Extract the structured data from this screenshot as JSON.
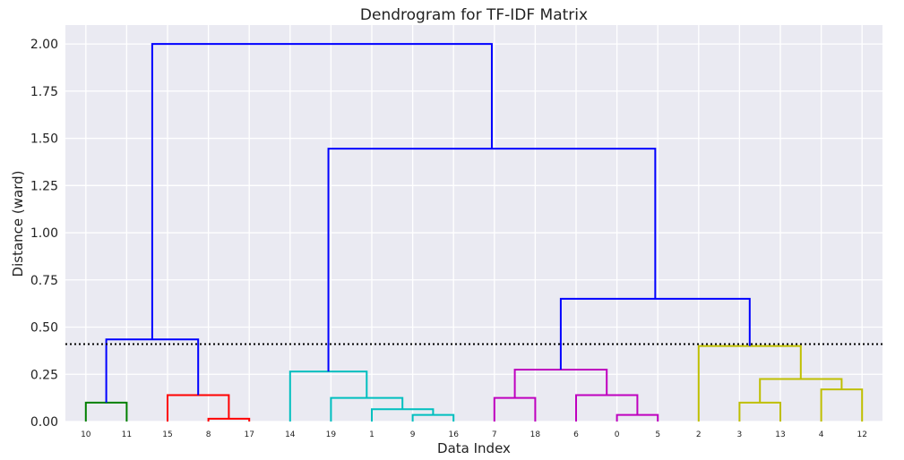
{
  "chart_data": {
    "type": "dendrogram",
    "title": "Dendrogram for TF-IDF Matrix",
    "xlabel": "Data Index",
    "ylabel": "Distance (ward)",
    "ylim": [
      0,
      2.1
    ],
    "yticks": [
      "0.00",
      "0.25",
      "0.50",
      "0.75",
      "1.00",
      "1.25",
      "1.50",
      "1.75",
      "2.00"
    ],
    "leaves": [
      "10",
      "11",
      "15",
      "8",
      "17",
      "14",
      "19",
      "1",
      "9",
      "16",
      "7",
      "18",
      "6",
      "0",
      "5",
      "2",
      "3",
      "13",
      "4",
      "12"
    ],
    "threshold": 0.41,
    "grid": true,
    "background": "#eaeaf2",
    "merges": [
      {
        "a": "10",
        "b": "11",
        "height": 0.1,
        "color": "#008000"
      },
      {
        "a": "8",
        "b": "17",
        "height": 0.015,
        "color": "#ff0000"
      },
      {
        "a": "15",
        "b": "8+17",
        "height": 0.14,
        "color": "#ff0000"
      },
      {
        "a": "9",
        "b": "16",
        "height": 0.035,
        "color": "#00bfbf"
      },
      {
        "a": "1",
        "b": "9+16",
        "height": 0.065,
        "color": "#00bfbf"
      },
      {
        "a": "19",
        "b": "1+9+16",
        "height": 0.125,
        "color": "#00bfbf"
      },
      {
        "a": "14",
        "b": "19+1+9+16",
        "height": 0.265,
        "color": "#00bfbf"
      },
      {
        "a": "7",
        "b": "18",
        "height": 0.125,
        "color": "#bf00bf"
      },
      {
        "a": "0",
        "b": "5",
        "height": 0.035,
        "color": "#bf00bf"
      },
      {
        "a": "6",
        "b": "0+5",
        "height": 0.14,
        "color": "#bf00bf"
      },
      {
        "a": "7+18",
        "b": "6+0+5",
        "height": 0.275,
        "color": "#bf00bf"
      },
      {
        "a": "3",
        "b": "13",
        "height": 0.1,
        "color": "#bfbf00"
      },
      {
        "a": "4",
        "b": "12",
        "height": 0.17,
        "color": "#bfbf00"
      },
      {
        "a": "3+13",
        "b": "4+12",
        "height": 0.225,
        "color": "#bfbf00"
      },
      {
        "a": "2",
        "b": "3+13+4+12",
        "height": 0.4,
        "color": "#bfbf00"
      },
      {
        "a": "10+11",
        "b": "15+8+17",
        "height": 0.435,
        "color": "#0000ff"
      },
      {
        "a": "7+18+6+0+5",
        "b": "2+3+13+4+12",
        "height": 0.65,
        "color": "#0000ff"
      },
      {
        "a": "14+19+1+9+16",
        "b": "7+18+6+0+5+2+3+13+4+12",
        "height": 1.445,
        "color": "#0000ff"
      },
      {
        "a": "10+11+15+8+17",
        "b": "14+19+1+9+16+7+18+6+0+5+2+3+13+4+12",
        "height": 2.0,
        "color": "#0000ff"
      }
    ]
  }
}
